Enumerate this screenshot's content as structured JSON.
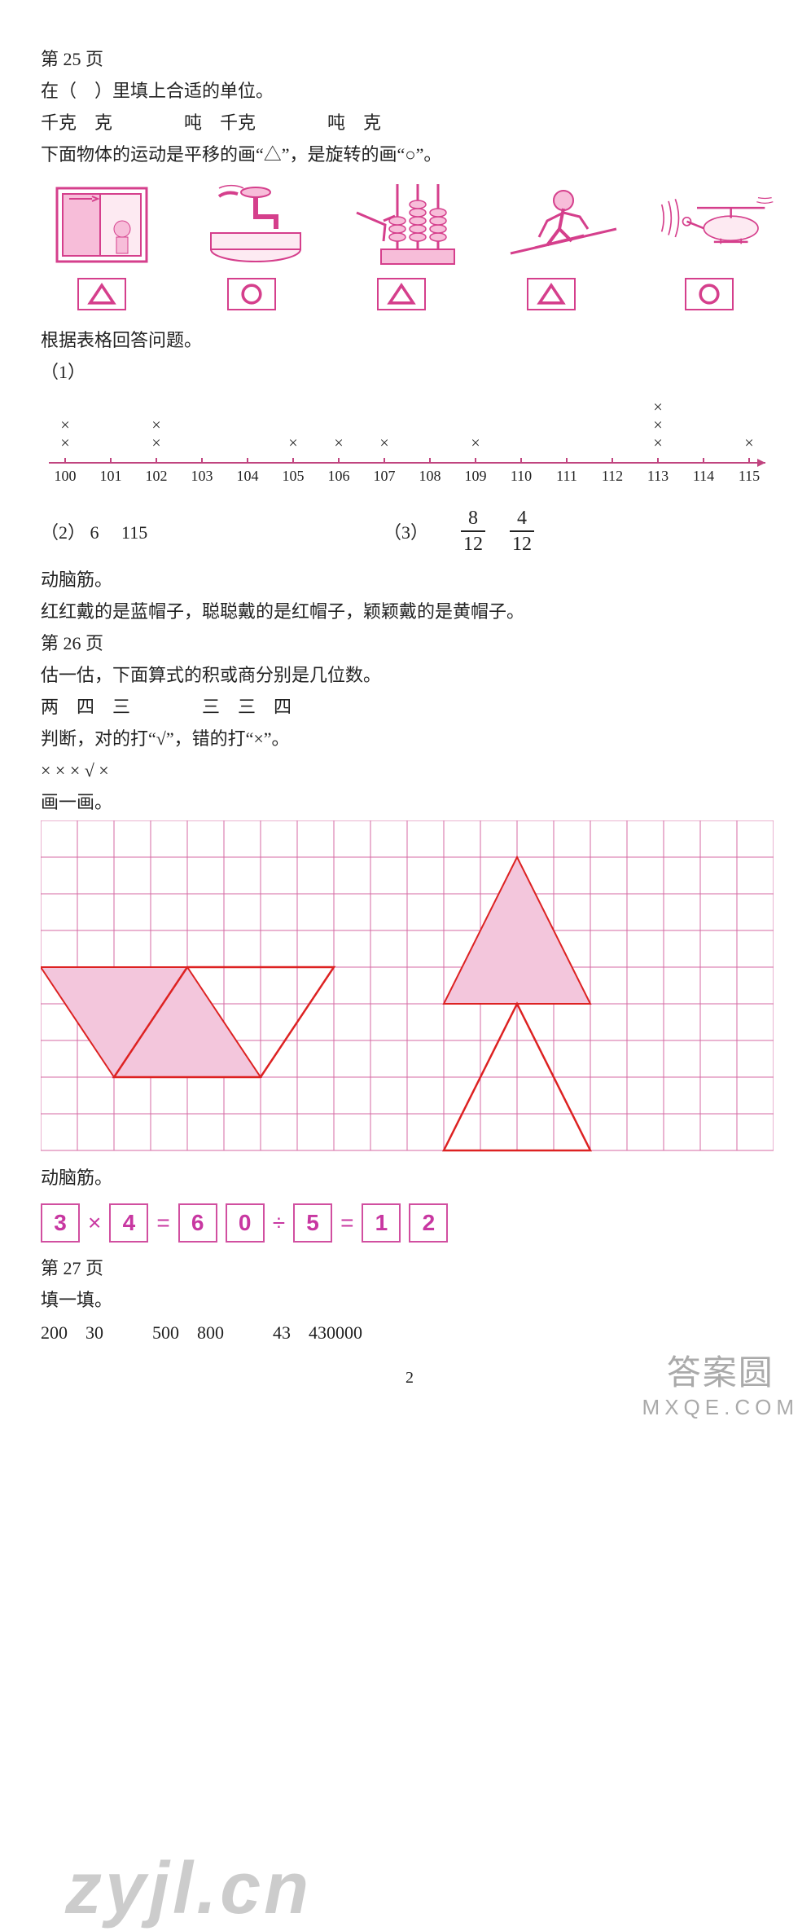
{
  "p25": {
    "header": "第 25 页",
    "fill_unit_title": "在（　）里填上合适的单位。",
    "units_line": "千克　克　　　　吨　千克　　　　吨　克",
    "motion_title": "下面物体的运动是平移的画“△”，是旋转的画“○”。",
    "images": {
      "colors": {
        "stroke": "#d53f8c",
        "fill": "#f7bdd9",
        "light": "#fdeaf2"
      }
    },
    "answers": [
      "triangle",
      "circle",
      "triangle",
      "triangle",
      "circle"
    ],
    "table_q_title": "根据表格回答问题。",
    "q1_label": "（1）",
    "numberline": {
      "start": 100,
      "end": 115,
      "ticks": [
        100,
        101,
        102,
        103,
        104,
        105,
        106,
        107,
        108,
        109,
        110,
        111,
        112,
        113,
        114,
        115
      ],
      "marks": {
        "100": 2,
        "102": 2,
        "105": 1,
        "106": 1,
        "107": 1,
        "109": 1,
        "113": 3,
        "115": 1
      },
      "axis_color": "#c0447f"
    },
    "q2": {
      "label": "（2）",
      "a": "6",
      "b": "115"
    },
    "q3": {
      "label": "（3）",
      "frac1_top": "8",
      "frac1_bot": "12",
      "frac2_top": "4",
      "frac2_bot": "12"
    },
    "brain_title": "动脑筋。",
    "brain_ans": "红红戴的是蓝帽子，聪聪戴的是红帽子，颖颖戴的是黄帽子。"
  },
  "p26": {
    "header": "第 26 页",
    "estimate_title": "估一估，下面算式的积或商分别是几位数。",
    "estimate_ans": "两　四　三　　　　三　三　四",
    "judge_title": "判断，对的打“√”，错的打“×”。",
    "judge_ans": "× × × √ ×",
    "draw_title": "画一画。",
    "grid": {
      "cols": 20,
      "rows": 9,
      "cell": 45,
      "grid_color": "#d46aa3",
      "shape_stroke": "#d22",
      "shape_fill": "#f3c6dc",
      "parallelogram1": [
        [
          0,
          4
        ],
        [
          4,
          4
        ],
        [
          6,
          7
        ],
        [
          2,
          7
        ]
      ],
      "parallelogram2": [
        [
          4,
          4
        ],
        [
          8,
          4
        ],
        [
          6,
          7
        ],
        [
          2,
          7
        ]
      ],
      "triangle_top": [
        [
          13,
          1
        ],
        [
          15,
          5
        ],
        [
          11,
          5
        ]
      ],
      "triangle_bot": [
        [
          13,
          5
        ],
        [
          15,
          9
        ],
        [
          11,
          9
        ]
      ]
    },
    "brain_title": "动脑筋。",
    "equation": [
      "3",
      "×",
      "4",
      "=",
      "6",
      "0",
      "÷",
      "5",
      "=",
      "1",
      "2"
    ]
  },
  "p27": {
    "header": "第 27 页",
    "fill_title": "填一填。",
    "fill_values": [
      "200　30",
      "500　800",
      "43　430000"
    ]
  },
  "footer": {
    "page_num": "2",
    "corner_top": "答案圆",
    "corner_bot": "MXQE.COM"
  }
}
